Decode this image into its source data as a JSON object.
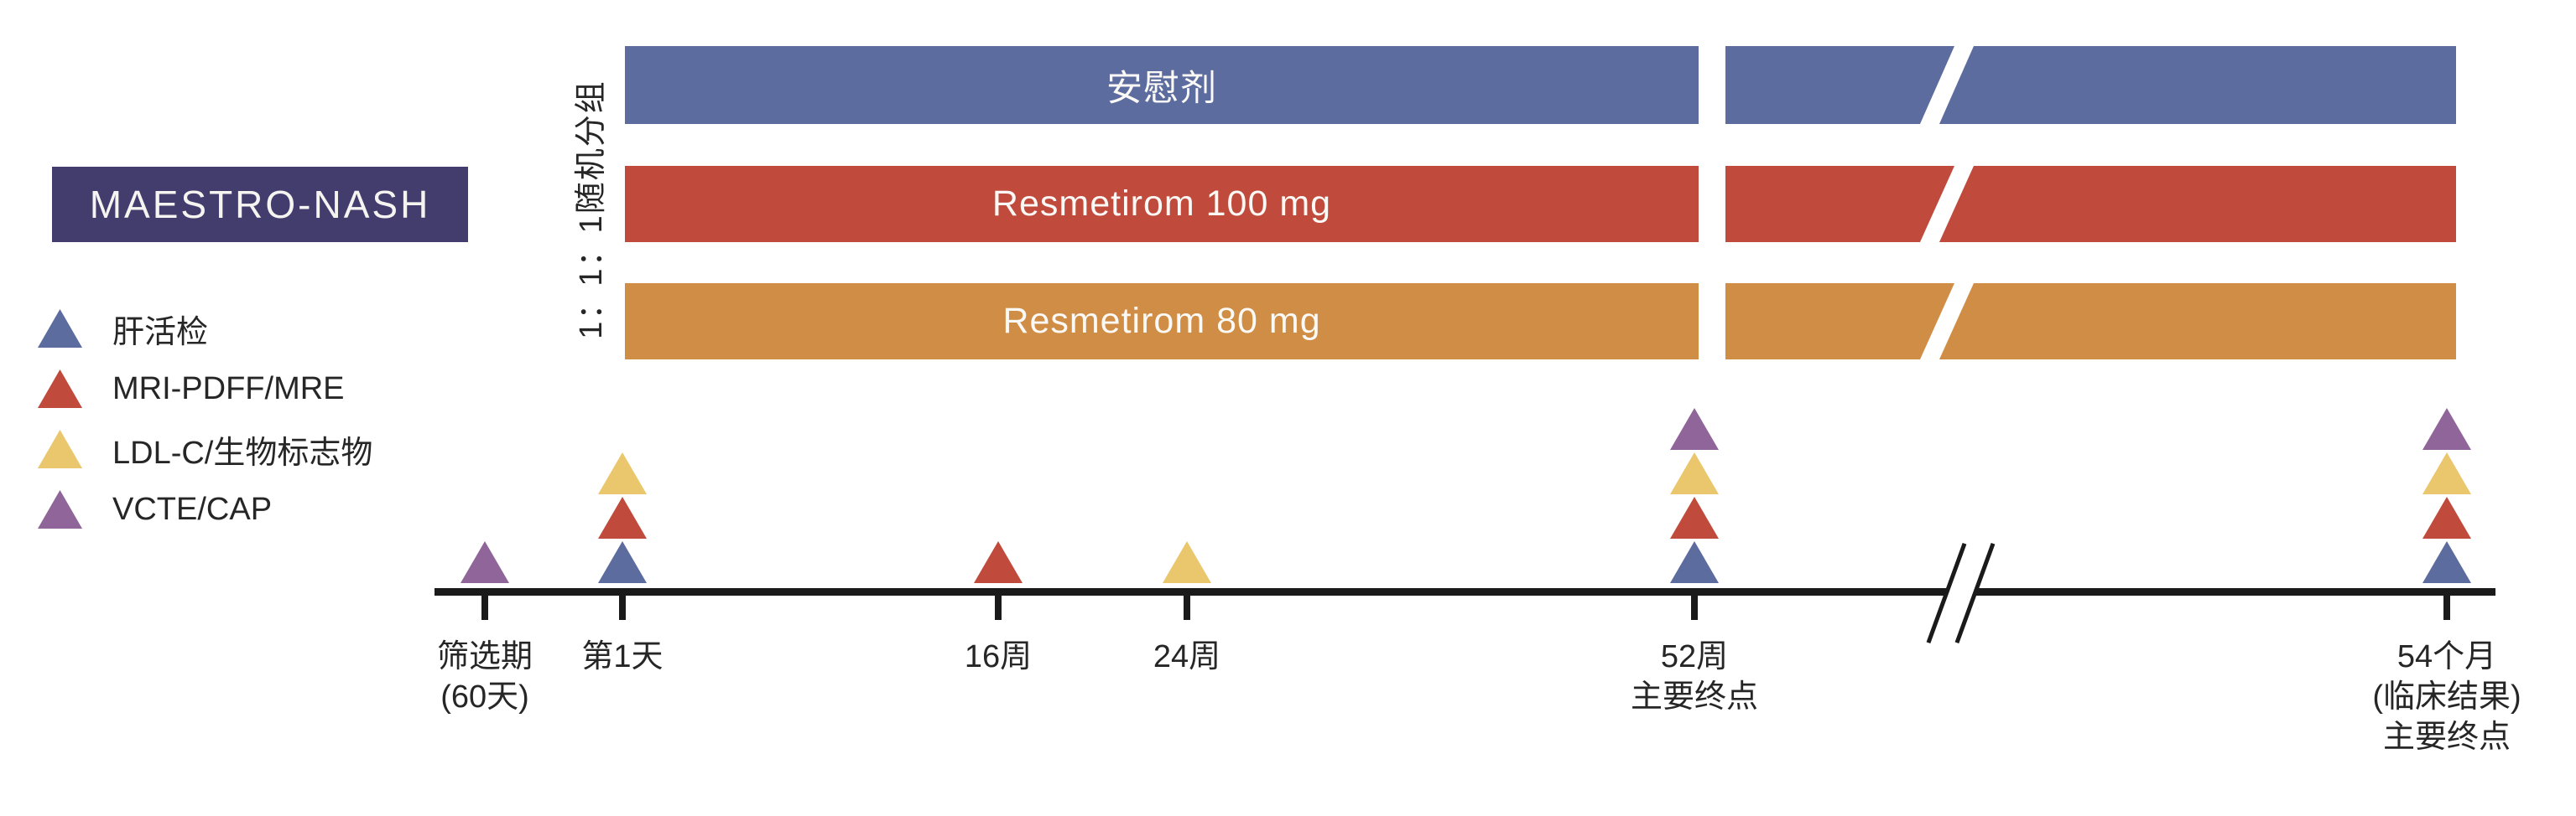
{
  "title": {
    "label": "MAESTRO-NASH",
    "bg": "#423d6d"
  },
  "randomization_label": "1：1：1随机分组",
  "colors": {
    "navy": "#423d6d",
    "blue": "#5c6c9e",
    "red": "#c04b3c",
    "orange": "#d08d45",
    "yellow": "#eac76d",
    "purple": "#90659a",
    "text": "#262626",
    "timeline": "#1a1a1a"
  },
  "legend": {
    "items": [
      {
        "name": "liver-biopsy",
        "label": "肝活检",
        "color": "#5c6c9e"
      },
      {
        "name": "mri-pdff-mre",
        "label": "MRI-PDFF/MRE",
        "color": "#c04b3c"
      },
      {
        "name": "ldl-c-biomarkers",
        "label": "LDL-C/生物标志物",
        "color": "#eac76d"
      },
      {
        "name": "vcte-cap",
        "label": "VCTE/CAP",
        "color": "#90659a"
      }
    ]
  },
  "arms": [
    {
      "name": "placebo",
      "label": "安慰剂",
      "color": "#5c6c9e"
    },
    {
      "name": "resmetirom-100mg",
      "label": "Resmetirom 100 mg",
      "color": "#c04b3c"
    },
    {
      "name": "resmetirom-80mg",
      "label": "Resmetirom 80 mg",
      "color": "#d08d45"
    }
  ],
  "timeline": {
    "line_color": "#1a1a1a",
    "points": [
      {
        "name": "screening",
        "label": "筛选期\n(60天)",
        "markers": [
          "#90659a"
        ]
      },
      {
        "name": "day-1",
        "label": "第1天",
        "markers": [
          "#5c6c9e",
          "#c04b3c",
          "#eac76d"
        ]
      },
      {
        "name": "week-16",
        "label": "16周",
        "markers": [
          "#c04b3c"
        ]
      },
      {
        "name": "week-24",
        "label": "24周",
        "markers": [
          "#eac76d"
        ]
      },
      {
        "name": "week-52",
        "label": "52周\n主要终点",
        "markers": [
          "#5c6c9e",
          "#c04b3c",
          "#eac76d",
          "#90659a"
        ]
      },
      {
        "name": "month-54",
        "label": "54个月\n(临床结果)\n主要终点",
        "markers": [
          "#5c6c9e",
          "#c04b3c",
          "#eac76d",
          "#90659a"
        ]
      }
    ]
  }
}
